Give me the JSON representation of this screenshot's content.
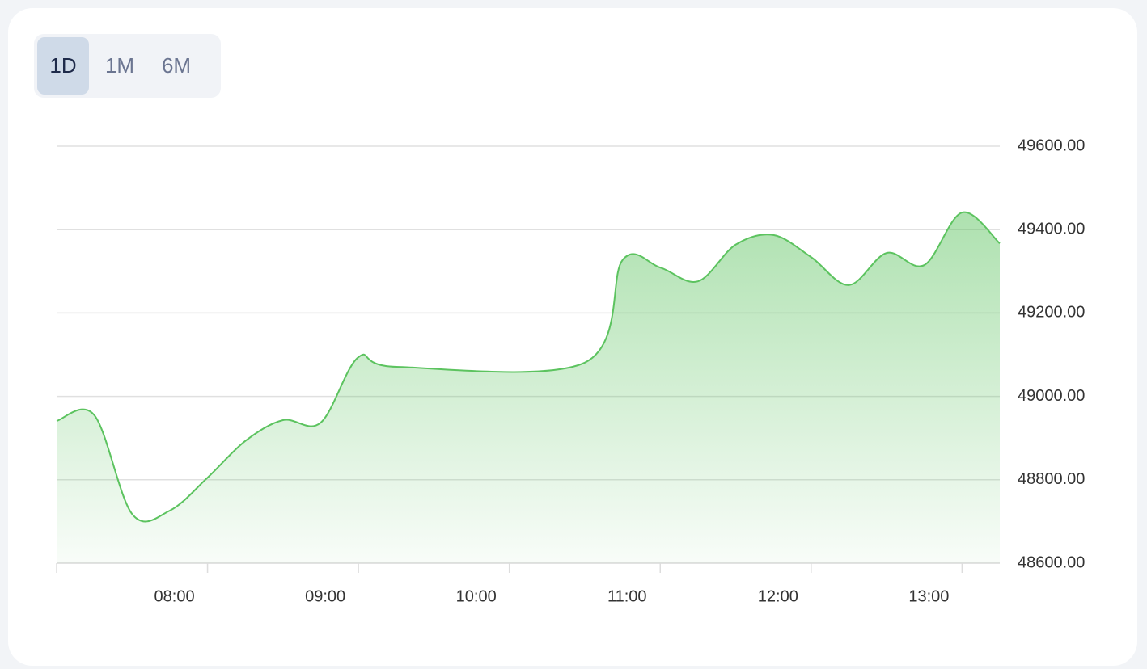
{
  "tabs": [
    {
      "label": "1D",
      "active": true
    },
    {
      "label": "1M",
      "active": false
    },
    {
      "label": "6M",
      "active": false
    }
  ],
  "chart_data": {
    "type": "area",
    "x": [
      "07:00",
      "07:15",
      "07:30",
      "07:45",
      "08:00",
      "08:15",
      "08:30",
      "08:45",
      "09:00",
      "09:15",
      "10:30",
      "10:45",
      "11:00",
      "11:15",
      "11:30",
      "11:45",
      "12:00",
      "12:15",
      "12:30",
      "12:45",
      "13:00",
      "13:15"
    ],
    "values": [
      48941,
      48955,
      48718,
      48726,
      48805,
      48893,
      48943,
      48937,
      49094,
      49071,
      49081,
      49327,
      49309,
      49276,
      49364,
      49387,
      49334,
      49267,
      49344,
      49315,
      49441,
      49367
    ],
    "color": "#5cc35f",
    "xlim": [
      "07:00",
      "13:15"
    ],
    "xticks": [
      "08:00",
      "09:00",
      "10:00",
      "11:00",
      "12:00",
      "13:00"
    ],
    "ylim": [
      48600,
      49600
    ],
    "yticks": [
      {
        "value": 48600,
        "label": "48600.00"
      },
      {
        "value": 48800,
        "label": "48800.00"
      },
      {
        "value": 49000,
        "label": "49000.00"
      },
      {
        "value": 49200,
        "label": "49200.00"
      },
      {
        "value": 49400,
        "label": "49400.00"
      },
      {
        "value": 49600,
        "label": "49600.00"
      }
    ],
    "grid": true
  }
}
